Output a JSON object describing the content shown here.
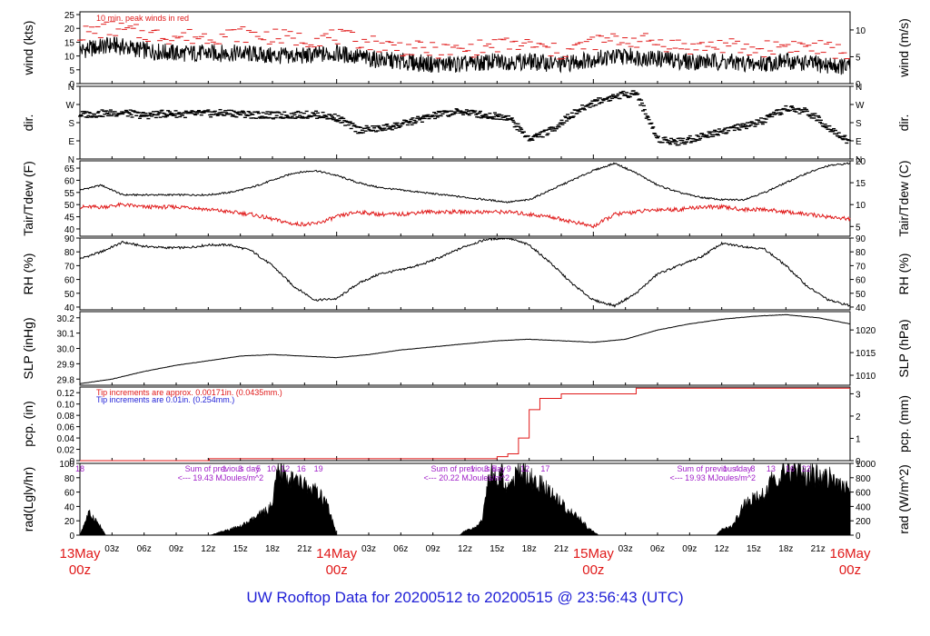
{
  "footer_title": "UW Rooftop Data for 20200512  to  20200515 @ 23:56:43  (UTC)",
  "colors": {
    "primary": "#000000",
    "peak": "#e01919",
    "tip_note2": "#1f1fd6",
    "sum_text": "#a020c8",
    "day_label": "#e01919",
    "footer": "#1f1fd6"
  },
  "chart_data": [
    {
      "id": "wind",
      "type": "line",
      "ylabel_left": "wind (kts)",
      "ylabel_right": "wind (m/s)",
      "ylim": [
        0,
        26
      ],
      "yticks_left": [
        0,
        5,
        10,
        15,
        20,
        25
      ],
      "yticks_right": [
        0,
        5,
        10
      ],
      "annotation": "10 min. peak winds in red",
      "series": [
        {
          "name": "wind",
          "color": "#000000",
          "x": [
            0,
            3,
            6,
            9,
            12,
            15,
            18,
            21,
            24,
            27,
            30,
            33,
            36,
            39,
            42,
            45,
            48,
            51,
            54,
            57,
            60,
            63,
            66,
            69,
            72
          ],
          "values": [
            12,
            14,
            12,
            11,
            11,
            11,
            10,
            10,
            11,
            9,
            8,
            7,
            7,
            8,
            8,
            7,
            9,
            10,
            9,
            8,
            8,
            7,
            8,
            7,
            6
          ]
        },
        {
          "name": "peak",
          "color": "#e01919",
          "x": [
            0,
            3,
            6,
            9,
            12,
            15,
            18,
            21,
            24,
            27,
            30,
            33,
            36,
            39,
            42,
            45,
            48,
            51,
            54,
            57,
            60,
            63,
            66,
            69,
            72
          ],
          "values": [
            18,
            20,
            18,
            17,
            17,
            18,
            17,
            16,
            17,
            15,
            13,
            12,
            12,
            14,
            14,
            11,
            15,
            16,
            15,
            13,
            14,
            12,
            14,
            13,
            11
          ]
        }
      ]
    },
    {
      "id": "dir",
      "type": "scatter",
      "ylabel_left": "dir.",
      "ylabel_right": "dir.",
      "ylim": [
        0,
        360
      ],
      "ytick_labels": [
        "N",
        "E",
        "S",
        "W",
        "N"
      ],
      "ytick_values": [
        0,
        90,
        180,
        270,
        360
      ],
      "series": [
        {
          "name": "dir",
          "color": "#000000",
          "x": [
            0,
            2,
            4,
            6,
            8,
            10,
            12,
            14,
            16,
            18,
            20,
            22,
            24,
            26,
            28,
            30,
            32,
            34,
            36,
            38,
            40,
            42,
            44,
            46,
            48,
            50,
            52,
            54,
            56,
            58,
            60,
            62,
            64,
            66,
            68,
            70,
            72
          ],
          "values": [
            220,
            225,
            230,
            215,
            225,
            222,
            225,
            228,
            220,
            215,
            218,
            220,
            205,
            145,
            150,
            170,
            200,
            225,
            235,
            215,
            210,
            100,
            140,
            220,
            280,
            310,
            330,
            100,
            85,
            110,
            140,
            160,
            190,
            250,
            235,
            160,
            80
          ]
        }
      ]
    },
    {
      "id": "temp",
      "type": "line",
      "ylabel_left": "Tair/Tdew (F)",
      "ylabel_right": "Tair/Tdew (C)",
      "ylim": [
        37,
        68
      ],
      "yticks_left": [
        40,
        45,
        50,
        55,
        60,
        65
      ],
      "yticks_right": [
        5,
        10,
        15,
        20
      ],
      "series": [
        {
          "name": "Tair",
          "color": "#000000",
          "x": [
            0,
            2,
            4,
            6,
            8,
            10,
            12,
            14,
            16,
            18,
            20,
            22,
            24,
            26,
            28,
            30,
            32,
            34,
            36,
            38,
            40,
            42,
            44,
            46,
            48,
            50,
            52,
            54,
            56,
            58,
            60,
            62,
            64,
            66,
            68,
            70,
            72
          ],
          "values": [
            56,
            58,
            54,
            54,
            54,
            54,
            54,
            55,
            57,
            60,
            63,
            64,
            62,
            59,
            57,
            56,
            55,
            54,
            53,
            52,
            51,
            52,
            56,
            60,
            64,
            67,
            63,
            58,
            55,
            53,
            52,
            52,
            55,
            59,
            63,
            66,
            67
          ]
        },
        {
          "name": "Tdew",
          "color": "#e01919",
          "x": [
            0,
            2,
            4,
            6,
            8,
            10,
            12,
            14,
            16,
            18,
            20,
            22,
            24,
            26,
            28,
            30,
            32,
            34,
            36,
            38,
            40,
            42,
            44,
            46,
            48,
            50,
            52,
            54,
            56,
            58,
            60,
            62,
            64,
            66,
            68,
            70,
            72
          ],
          "values": [
            49,
            49,
            50,
            49,
            49,
            49,
            48,
            47,
            46,
            44,
            42,
            42,
            45,
            47,
            46,
            46,
            47,
            47,
            47,
            47,
            47,
            46,
            45,
            43,
            41,
            46,
            47,
            48,
            48,
            49,
            49,
            48,
            48,
            47,
            46,
            45,
            44
          ]
        }
      ]
    },
    {
      "id": "rh",
      "type": "line",
      "ylabel_left": "RH (%)",
      "ylabel_right": "RH (%)",
      "ylim": [
        38,
        90
      ],
      "yticks_left": [
        40,
        50,
        60,
        70,
        80,
        90
      ],
      "yticks_right": [
        40,
        50,
        60,
        70,
        80,
        90
      ],
      "series": [
        {
          "name": "RH",
          "color": "#000000",
          "x": [
            0,
            2,
            4,
            6,
            8,
            10,
            12,
            14,
            16,
            18,
            20,
            22,
            24,
            26,
            28,
            30,
            32,
            34,
            36,
            38,
            40,
            42,
            44,
            46,
            48,
            50,
            52,
            54,
            56,
            58,
            60,
            62,
            64,
            66,
            68,
            70,
            72
          ],
          "values": [
            75,
            80,
            87,
            84,
            83,
            83,
            85,
            85,
            81,
            70,
            55,
            45,
            46,
            57,
            64,
            67,
            71,
            77,
            84,
            89,
            90,
            85,
            72,
            57,
            45,
            41,
            50,
            64,
            70,
            76,
            86,
            84,
            82,
            70,
            55,
            45,
            41
          ]
        }
      ]
    },
    {
      "id": "slp",
      "type": "line",
      "ylabel_left": "SLP (inHg)",
      "ylabel_right": "SLP (hPa)",
      "ylim": [
        29.76,
        30.24
      ],
      "yticks_left": [
        29.8,
        29.9,
        30.0,
        30.1,
        30.2
      ],
      "ytick_labels_left": [
        "29.8",
        "29.9",
        "30.0",
        "30.1",
        "30.2"
      ],
      "yticks_right": [
        1010,
        1015,
        1020
      ],
      "series": [
        {
          "name": "SLP",
          "color": "#000000",
          "x": [
            0,
            3,
            6,
            9,
            12,
            15,
            18,
            21,
            24,
            27,
            30,
            33,
            36,
            39,
            42,
            45,
            48,
            51,
            54,
            57,
            60,
            63,
            66,
            69,
            72
          ],
          "values": [
            29.77,
            29.8,
            29.85,
            29.89,
            29.92,
            29.95,
            29.96,
            29.95,
            29.94,
            29.96,
            29.99,
            30.01,
            30.03,
            30.05,
            30.06,
            30.05,
            30.04,
            30.06,
            30.12,
            30.16,
            30.19,
            30.21,
            30.22,
            30.2,
            30.16
          ]
        }
      ]
    },
    {
      "id": "pcp",
      "type": "line",
      "ylabel_left": "pcp. (in)",
      "ylabel_right": "pcp. (mm)",
      "ylim": [
        0,
        0.13
      ],
      "yticks_left": [
        0,
        0.02,
        0.04,
        0.06,
        0.08,
        0.1,
        0.12
      ],
      "ytick_labels_left": [
        "0",
        "0.02",
        "0.04",
        "0.06",
        "0.08",
        "0.10",
        "0.12"
      ],
      "yticks_right": [
        0,
        1,
        2,
        3
      ],
      "notes": [
        {
          "text": "Tip increments are approx. 0.00171in. (0.0435mm.)",
          "color": "#e01919"
        },
        {
          "text": "Tip increments are 0.01in. (0.254mm.)",
          "color": "#1f1fd6"
        }
      ],
      "series": [
        {
          "name": "pcp",
          "color": "#e01919",
          "step": true,
          "x": [
            0,
            12,
            12.1,
            38,
            39,
            40,
            41,
            42,
            43,
            45,
            52,
            72
          ],
          "values": [
            0,
            0,
            0.0034,
            0.0034,
            0.007,
            0.012,
            0.04,
            0.09,
            0.11,
            0.118,
            0.128,
            0.128
          ]
        }
      ]
    },
    {
      "id": "rad",
      "type": "area",
      "ylabel_left": "rad(Lgly/hr)",
      "ylabel_right": "rad (W/m^2)",
      "ylim": [
        0,
        100
      ],
      "yticks_left": [
        0,
        20,
        40,
        60,
        80,
        100
      ],
      "yticks_right": [
        0,
        200,
        400,
        600,
        800,
        1000
      ],
      "hour_labels": [
        {
          "x": 0,
          "label": "18"
        },
        {
          "x": 13.5,
          "label": "1"
        },
        {
          "x": 15,
          "label": "3"
        },
        {
          "x": 16.7,
          "label": "5"
        },
        {
          "x": 17.9,
          "label": "10"
        },
        {
          "x": 19.2,
          "label": "12"
        },
        {
          "x": 20.7,
          "label": "16"
        },
        {
          "x": 22.3,
          "label": "19"
        },
        {
          "x": 36.7,
          "label": "1"
        },
        {
          "x": 38,
          "label": "3"
        },
        {
          "x": 38.7,
          "label": "5"
        },
        {
          "x": 40.1,
          "label": "9"
        },
        {
          "x": 41.6,
          "label": "12"
        },
        {
          "x": 43.5,
          "label": "17"
        },
        {
          "x": 60.3,
          "label": "1"
        },
        {
          "x": 61.4,
          "label": "4"
        },
        {
          "x": 62.9,
          "label": "8"
        },
        {
          "x": 64.6,
          "label": "13"
        },
        {
          "x": 66.4,
          "label": "16"
        },
        {
          "x": 67.9,
          "label": "22"
        }
      ],
      "sums": [
        {
          "x": 6,
          "line1": "Sum of previous day",
          "line2": "<--- 19.43 MJoules/m^2"
        },
        {
          "x": 29,
          "line1": "Sum of previous day",
          "line2": "<--- 20.22 MJoules/m^2"
        },
        {
          "x": 52,
          "line1": "Sum of previous day",
          "line2": "<--- 19.93 MJoules/m^2"
        }
      ],
      "series": [
        {
          "name": "rad",
          "color": "#000000",
          "x": [
            0,
            0.3,
            0.8,
            1.3,
            2,
            2.4,
            12.2,
            13,
            14,
            15,
            16,
            17,
            18,
            18.5,
            19,
            19.5,
            20,
            21,
            22,
            23,
            23.5,
            24,
            35.5,
            36,
            37,
            37.6,
            38,
            38.5,
            39,
            39.5,
            40,
            41,
            42,
            43,
            44,
            45,
            46,
            47,
            47.5,
            48,
            48.5,
            59.5,
            60,
            61,
            62,
            63,
            64,
            65,
            66,
            67,
            68,
            69,
            70,
            71,
            72
          ],
          "values": [
            0,
            12,
            30,
            25,
            10,
            0,
            0,
            4,
            8,
            12,
            20,
            30,
            40,
            90,
            85,
            80,
            75,
            70,
            60,
            45,
            25,
            0,
            0,
            6,
            10,
            22,
            60,
            90,
            70,
            88,
            60,
            90,
            80,
            70,
            60,
            45,
            30,
            20,
            10,
            5,
            0,
            0,
            8,
            12,
            40,
            50,
            55,
            85,
            90,
            88,
            80,
            85,
            80,
            70,
            60
          ]
        }
      ]
    }
  ],
  "x_axis": {
    "xlim": [
      0,
      72
    ],
    "hour_tick_labels": [
      {
        "x": 3,
        "label": "03z"
      },
      {
        "x": 6,
        "label": "06z"
      },
      {
        "x": 9,
        "label": "09z"
      },
      {
        "x": 12,
        "label": "12z"
      },
      {
        "x": 15,
        "label": "15z"
      },
      {
        "x": 18,
        "label": "18z"
      },
      {
        "x": 21,
        "label": "21z"
      },
      {
        "x": 27,
        "label": "03z"
      },
      {
        "x": 30,
        "label": "06z"
      },
      {
        "x": 33,
        "label": "09z"
      },
      {
        "x": 36,
        "label": "12z"
      },
      {
        "x": 39,
        "label": "15z"
      },
      {
        "x": 42,
        "label": "18z"
      },
      {
        "x": 45,
        "label": "21z"
      },
      {
        "x": 51,
        "label": "03z"
      },
      {
        "x": 54,
        "label": "06z"
      },
      {
        "x": 57,
        "label": "09z"
      },
      {
        "x": 60,
        "label": "12z"
      },
      {
        "x": 63,
        "label": "15z"
      },
      {
        "x": 66,
        "label": "18z"
      },
      {
        "x": 69,
        "label": "21z"
      }
    ],
    "day_labels": [
      {
        "x": 0,
        "date": "13May",
        "hour": "00z"
      },
      {
        "x": 24,
        "date": "14May",
        "hour": "00z"
      },
      {
        "x": 48,
        "date": "15May",
        "hour": "00z"
      },
      {
        "x": 72,
        "date": "16May",
        "hour": "00z"
      }
    ]
  }
}
